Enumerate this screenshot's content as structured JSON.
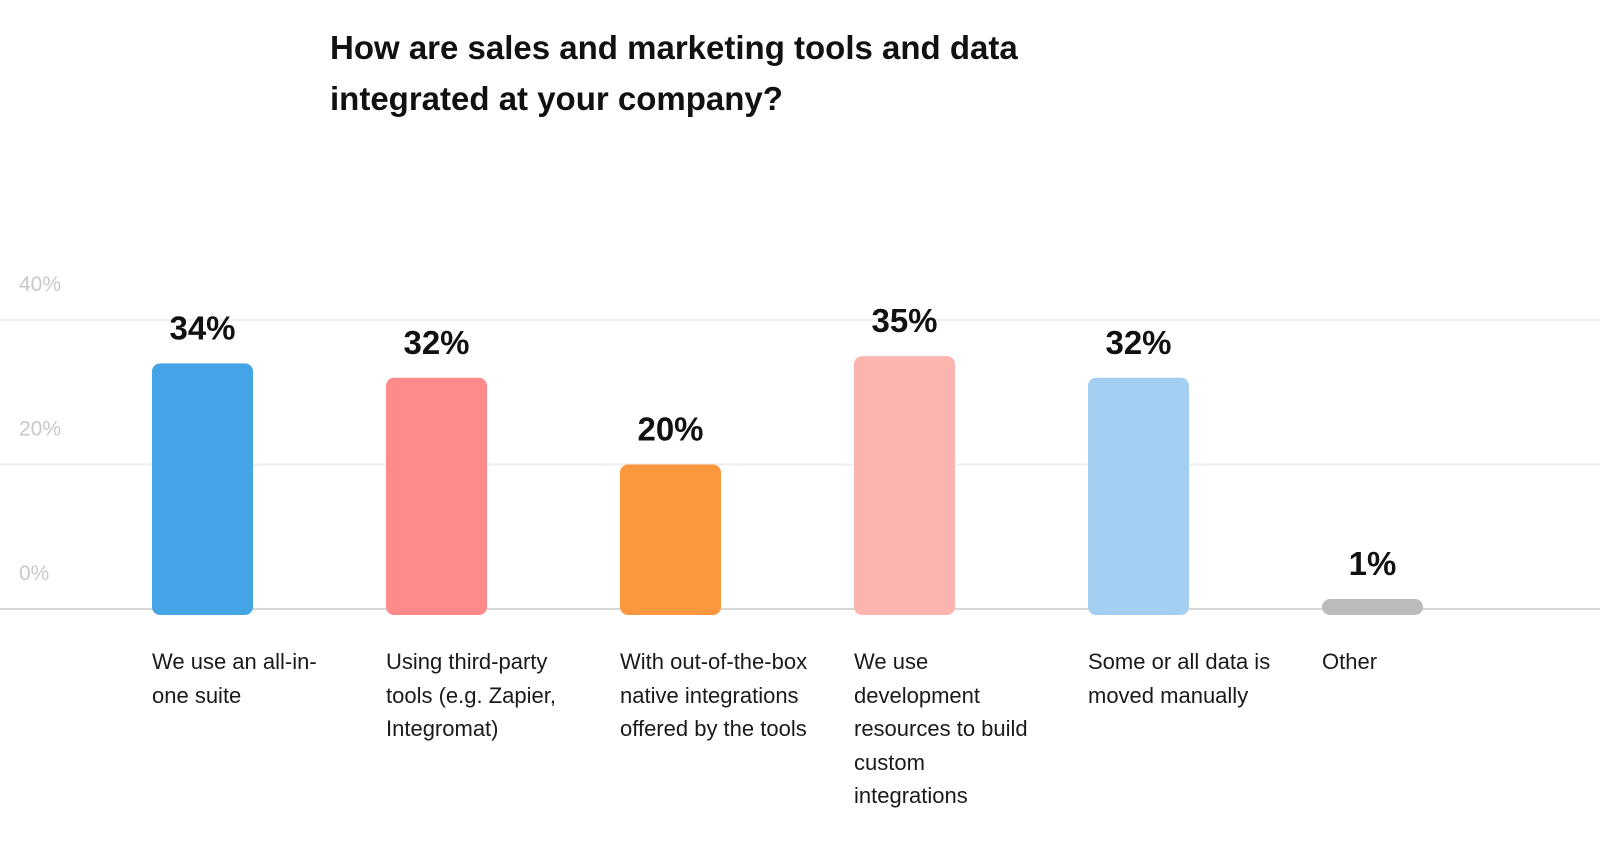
{
  "chart_data": {
    "type": "bar",
    "title": "How are sales and marketing tools and data integrated at your company?",
    "categories": [
      "We use an all-in-one suite",
      "Using third-party tools (e.g. Zapier, Integromat)",
      "With out-of-the-box native integrations offered by the tools",
      "We use development resources to build custom integrations",
      "Some or all data is moved manually",
      "Other"
    ],
    "values": [
      34,
      32,
      20,
      35,
      32,
      1
    ],
    "data_labels": [
      "34%",
      "32%",
      "20%",
      "35%",
      "32%",
      "1%"
    ],
    "colors": [
      "#45a4e5",
      "#ff8a8a",
      "#fb973c",
      "#fcb5ae",
      "#a2cff2",
      "#bbbbbb"
    ],
    "yticks": [
      0,
      20,
      40
    ],
    "ytick_labels": [
      "0%",
      "20%",
      "40%"
    ],
    "ylim": [
      0,
      40
    ],
    "xlabel": "",
    "ylabel": "",
    "grid": true,
    "legend": "none"
  }
}
